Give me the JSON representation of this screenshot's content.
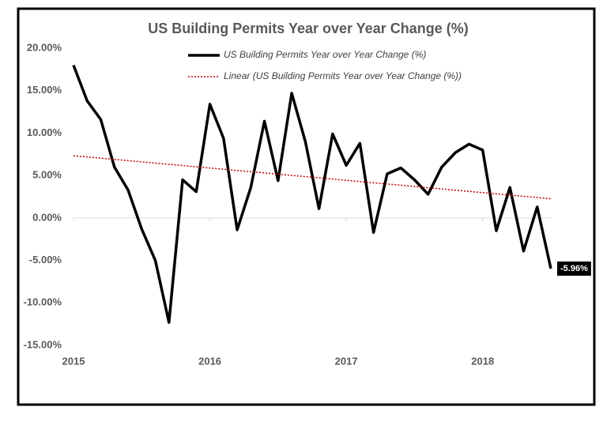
{
  "chart_data": {
    "type": "line",
    "title": "US Building Permits Year over Year Change (%)",
    "categories": [
      "2015",
      null,
      null,
      null,
      null,
      null,
      null,
      null,
      null,
      null,
      "2016",
      null,
      null,
      null,
      null,
      null,
      null,
      null,
      null,
      null,
      "2017",
      null,
      null,
      null,
      null,
      null,
      null,
      null,
      null,
      null,
      "2018",
      null,
      null,
      null,
      null,
      null
    ],
    "series": [
      {
        "name": "US Building Permits Year over Year Change (%)",
        "color": "#000000",
        "values": [
          18.0,
          13.8,
          11.6,
          6.0,
          3.3,
          -1.3,
          -5.0,
          -12.3,
          4.5,
          3.1,
          13.4,
          9.4,
          -1.4,
          3.6,
          11.4,
          4.4,
          14.7,
          9.0,
          1.1,
          9.9,
          6.2,
          8.8,
          -1.7,
          5.2,
          5.9,
          4.5,
          2.8,
          6.0,
          7.7,
          8.7,
          8.0,
          -1.5,
          3.6,
          -3.9,
          1.3,
          -5.96
        ],
        "value_labels": [
          null,
          null,
          null,
          null,
          null,
          null,
          null,
          null,
          null,
          null,
          null,
          null,
          null,
          null,
          null,
          null,
          null,
          null,
          null,
          null,
          null,
          null,
          null,
          null,
          null,
          null,
          null,
          null,
          null,
          null,
          null,
          null,
          null,
          null,
          null,
          "-5.96%"
        ]
      },
      {
        "name": "Linear (US Building Permits Year over Year Change (%))",
        "color": "#c00000",
        "trend": "linear",
        "of": 0
      }
    ],
    "ylim": [
      -15,
      20
    ],
    "yticks": [
      {
        "value": -15,
        "label": "-15.00%"
      },
      {
        "value": -10,
        "label": "-10.00%"
      },
      {
        "value": -5,
        "label": "-5.00%"
      },
      {
        "value": 0,
        "label": "0.00%"
      },
      {
        "value": 5,
        "label": "5.00%"
      },
      {
        "value": 10,
        "label": "10.00%"
      },
      {
        "value": 15,
        "label": "15.00%"
      },
      {
        "value": 20,
        "label": "20.00%"
      }
    ],
    "grid": false
  }
}
